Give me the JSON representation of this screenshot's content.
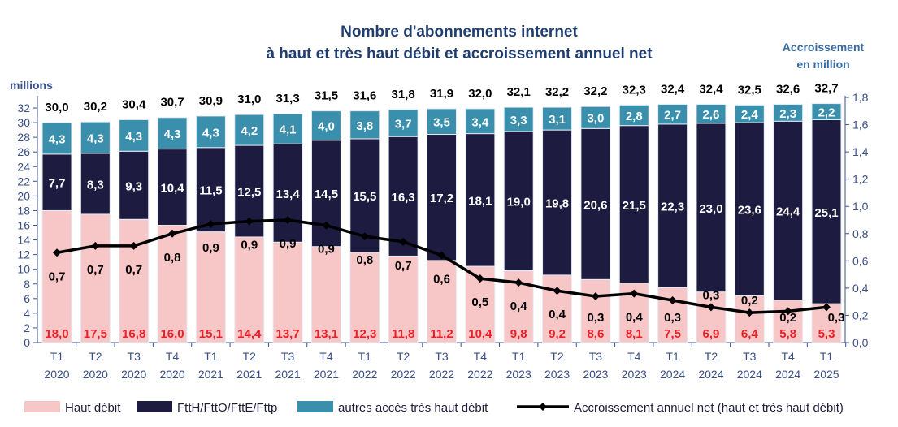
{
  "chart_data": {
    "type": "bar",
    "stacked": true,
    "title_line1": "Nombre d'abonnements internet",
    "title_line2": "à haut et très haut débit et accroissement annuel net",
    "ylabel": "millions",
    "y2label_line1": "Accroissement",
    "y2label_line2": "en million",
    "ylim": [
      0,
      32
    ],
    "y2lim": [
      0,
      1.8
    ],
    "yticks": [
      "0",
      "2",
      "4",
      "6",
      "8",
      "10",
      "12",
      "14",
      "16",
      "18",
      "20",
      "22",
      "24",
      "26",
      "28",
      "30",
      "32"
    ],
    "y2ticks": [
      "0,0",
      "0,2",
      "0,4",
      "0,6",
      "0,8",
      "1,0",
      "1,2",
      "1,4",
      "1,6",
      "1,8"
    ],
    "categories": [
      [
        "T1",
        "2020"
      ],
      [
        "T2",
        "2020"
      ],
      [
        "T3",
        "2020"
      ],
      [
        "T4",
        "2020"
      ],
      [
        "T1",
        "2021"
      ],
      [
        "T2",
        "2021"
      ],
      [
        "T3",
        "2021"
      ],
      [
        "T4",
        "2021"
      ],
      [
        "T1",
        "2022"
      ],
      [
        "T2",
        "2022"
      ],
      [
        "T3",
        "2022"
      ],
      [
        "T4",
        "2022"
      ],
      [
        "T1",
        "2023"
      ],
      [
        "T2",
        "2023"
      ],
      [
        "T3",
        "2023"
      ],
      [
        "T4",
        "2023"
      ],
      [
        "T1",
        "2024"
      ],
      [
        "T2",
        "2024"
      ],
      [
        "T3",
        "2024"
      ],
      [
        "T4",
        "2024"
      ],
      [
        "T1",
        "2025"
      ]
    ],
    "totals": [
      "30,0",
      "30,2",
      "30,4",
      "30,7",
      "30,9",
      "31,0",
      "31,3",
      "31,5",
      "31,6",
      "31,8",
      "31,9",
      "32,0",
      "32,1",
      "32,2",
      "32,2",
      "32,3",
      "32,4",
      "32,4",
      "32,5",
      "32,6",
      "32,7"
    ],
    "series": [
      {
        "name": "Haut débit",
        "color": "#f7c6c7",
        "label_color": "#e8202a",
        "values": [
          18.0,
          17.5,
          16.8,
          16.0,
          15.1,
          14.4,
          13.7,
          13.1,
          12.3,
          11.8,
          11.2,
          10.4,
          9.8,
          9.2,
          8.6,
          8.1,
          7.5,
          6.9,
          6.4,
          5.8,
          5.3
        ]
      },
      {
        "name": "FttH/FttO/FttE/Fttp",
        "color": "#1d1b3f",
        "label_color": "#ffffff",
        "values": [
          7.7,
          8.3,
          9.3,
          10.4,
          11.5,
          12.5,
          13.4,
          14.5,
          15.5,
          16.3,
          17.2,
          18.1,
          19.0,
          19.8,
          20.6,
          21.5,
          22.3,
          23.0,
          23.6,
          24.4,
          25.1
        ]
      },
      {
        "name": "autres accès très haut débit",
        "color": "#3a8fad",
        "label_color": "#ffffff",
        "values": [
          4.3,
          4.3,
          4.3,
          4.3,
          4.3,
          4.2,
          4.1,
          4.0,
          3.8,
          3.7,
          3.5,
          3.4,
          3.3,
          3.1,
          3.0,
          2.8,
          2.7,
          2.6,
          2.4,
          2.3,
          2.2
        ]
      }
    ],
    "line": {
      "name": "Accroissement annuel net (haut et très haut débit)",
      "axis": "right",
      "values": [
        0.66,
        0.71,
        0.71,
        0.8,
        0.87,
        0.89,
        0.9,
        0.86,
        0.78,
        0.74,
        0.64,
        0.47,
        0.44,
        0.38,
        0.34,
        0.36,
        0.31,
        0.26,
        0.22,
        0.23,
        0.26
      ],
      "labels": [
        "0,7",
        "0,7",
        "0,7",
        "0,8",
        "0,9",
        "0,9",
        "0,9",
        "0,9",
        "0,8",
        "0,7",
        "0,6",
        "0,5",
        "0,4",
        "0,4",
        "0,3",
        "0,4",
        "0,3",
        "0,3",
        "0,2",
        "0,2",
        "0,3"
      ]
    },
    "legend_position": "bottom"
  }
}
